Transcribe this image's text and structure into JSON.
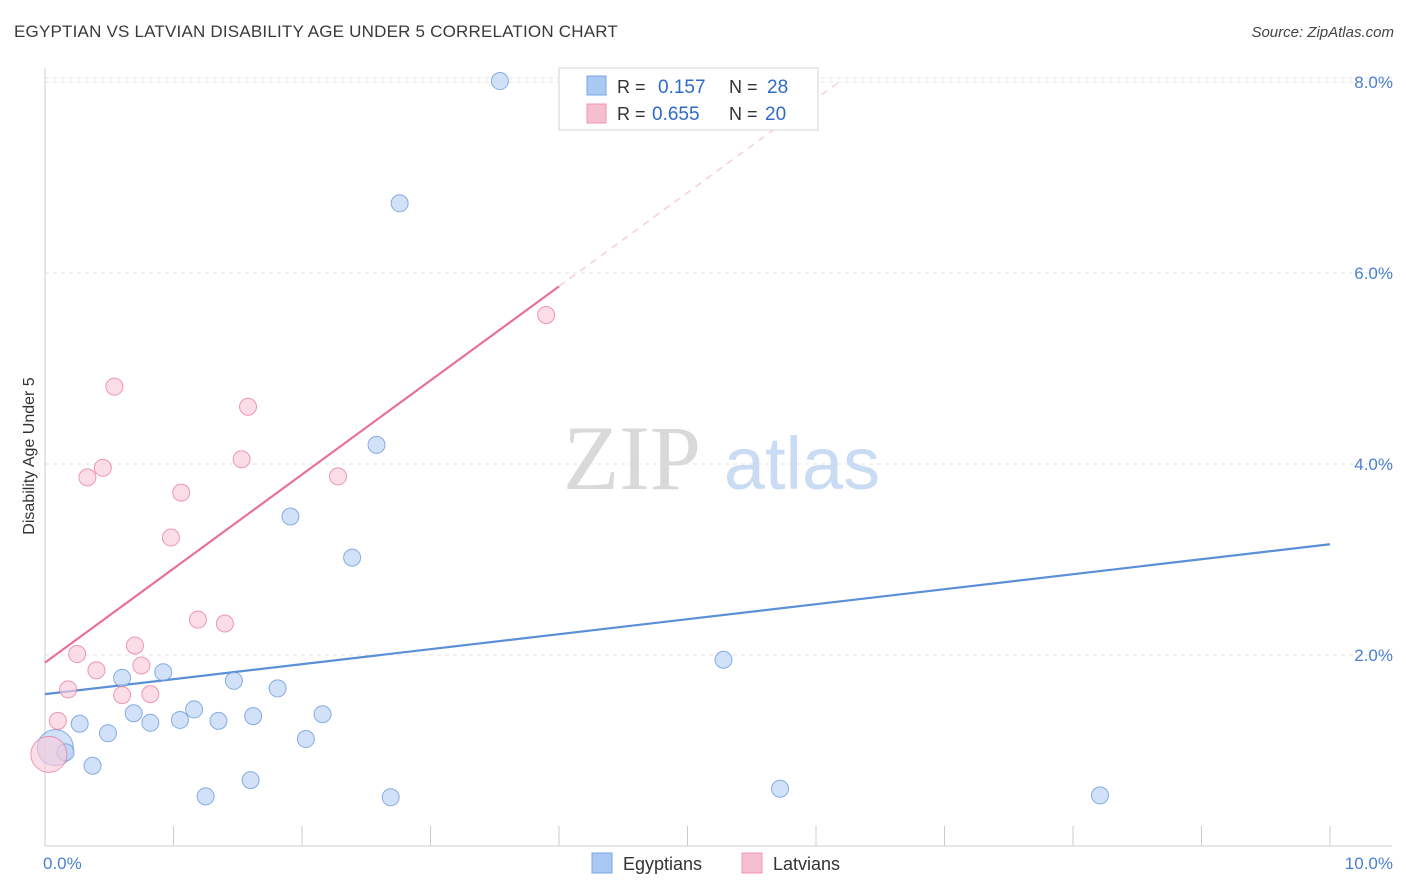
{
  "title": "EGYPTIAN VS LATVIAN DISABILITY AGE UNDER 5 CORRELATION CHART",
  "source": "Source: ZipAtlas.com",
  "watermark": {
    "zip": "ZIP",
    "atlas": "atlas"
  },
  "legend_top": [
    {
      "r_label": "R =",
      "r_value": "0.157",
      "n_label": "N =",
      "n_value": "28",
      "color": "#a9c8f2",
      "edge": "#7aa6e2"
    },
    {
      "r_label": "R =",
      "r_value": "0.655",
      "n_label": "N =",
      "n_value": "20",
      "color": "#f6bfd0",
      "edge": "#ee94b0"
    }
  ],
  "legend_bottom": [
    {
      "label": "Egyptians",
      "color": "#a9c8f2",
      "edge": "#7aa6e2"
    },
    {
      "label": "Latvians",
      "color": "#f6bfd0",
      "edge": "#ee94b0"
    }
  ],
  "chart_data": {
    "type": "scatter",
    "title": "EGYPTIAN VS LATVIAN DISABILITY AGE UNDER 5 CORRELATION CHART",
    "xlabel": "",
    "ylabel": "Disability Age Under 5",
    "xlim": [
      0,
      10
    ],
    "ylim": [
      0,
      8.2
    ],
    "x_tick_labels": [
      "0.0%",
      "10.0%"
    ],
    "y_ticks": [
      2,
      4,
      6,
      8
    ],
    "y_tick_labels": [
      "2.0%",
      "4.0%",
      "6.0%",
      "8.0%"
    ],
    "grid": true,
    "series": [
      {
        "name": "Egyptians",
        "color": "#5b8fd8",
        "fill": "#b9d3f5",
        "points": [
          {
            "x": 0.08,
            "y": 1.03,
            "s": 18
          },
          {
            "x": 0.16,
            "y": 0.98
          },
          {
            "x": 0.27,
            "y": 1.28
          },
          {
            "x": 0.37,
            "y": 0.84
          },
          {
            "x": 0.49,
            "y": 1.18
          },
          {
            "x": 0.6,
            "y": 1.76
          },
          {
            "x": 0.69,
            "y": 1.39
          },
          {
            "x": 0.82,
            "y": 1.29
          },
          {
            "x": 0.92,
            "y": 1.82
          },
          {
            "x": 1.05,
            "y": 1.32
          },
          {
            "x": 1.16,
            "y": 1.43
          },
          {
            "x": 1.25,
            "y": 0.52
          },
          {
            "x": 1.35,
            "y": 1.31
          },
          {
            "x": 1.47,
            "y": 1.73
          },
          {
            "x": 1.6,
            "y": 0.69
          },
          {
            "x": 1.62,
            "y": 1.36
          },
          {
            "x": 1.81,
            "y": 1.65
          },
          {
            "x": 1.91,
            "y": 3.45
          },
          {
            "x": 2.03,
            "y": 1.12
          },
          {
            "x": 2.16,
            "y": 1.38
          },
          {
            "x": 2.39,
            "y": 3.02
          },
          {
            "x": 2.58,
            "y": 4.2
          },
          {
            "x": 2.69,
            "y": 0.51
          },
          {
            "x": 2.76,
            "y": 6.73
          },
          {
            "x": 3.54,
            "y": 8.01
          },
          {
            "x": 5.28,
            "y": 1.95
          },
          {
            "x": 5.72,
            "y": 0.6
          },
          {
            "x": 8.21,
            "y": 0.53
          }
        ],
        "trend": {
          "x0": 0.0,
          "y0": 1.59,
          "x1": 10.0,
          "y1": 3.16
        }
      },
      {
        "name": "Latvians",
        "color": "#e8709a",
        "fill": "#f8cbd8",
        "points": [
          {
            "x": 0.03,
            "y": 0.96,
            "s": 18
          },
          {
            "x": 0.1,
            "y": 1.31
          },
          {
            "x": 0.18,
            "y": 1.64
          },
          {
            "x": 0.25,
            "y": 2.01
          },
          {
            "x": 0.33,
            "y": 3.86
          },
          {
            "x": 0.4,
            "y": 1.84
          },
          {
            "x": 0.45,
            "y": 3.96
          },
          {
            "x": 0.54,
            "y": 4.81
          },
          {
            "x": 0.6,
            "y": 1.58
          },
          {
            "x": 0.7,
            "y": 2.1
          },
          {
            "x": 0.75,
            "y": 1.89
          },
          {
            "x": 0.82,
            "y": 1.59
          },
          {
            "x": 0.98,
            "y": 3.23
          },
          {
            "x": 1.06,
            "y": 3.7
          },
          {
            "x": 1.19,
            "y": 2.37
          },
          {
            "x": 1.4,
            "y": 2.33
          },
          {
            "x": 1.53,
            "y": 4.05
          },
          {
            "x": 1.58,
            "y": 4.6
          },
          {
            "x": 2.28,
            "y": 3.87
          },
          {
            "x": 3.9,
            "y": 5.56
          }
        ],
        "trend": {
          "x0": 0.0,
          "y0": 1.92,
          "x1": 4.0,
          "y1": 5.86
        },
        "trend_dashed": {
          "x0": 4.0,
          "y0": 5.86,
          "x1": 6.2,
          "y1": 8.02
        }
      }
    ]
  }
}
